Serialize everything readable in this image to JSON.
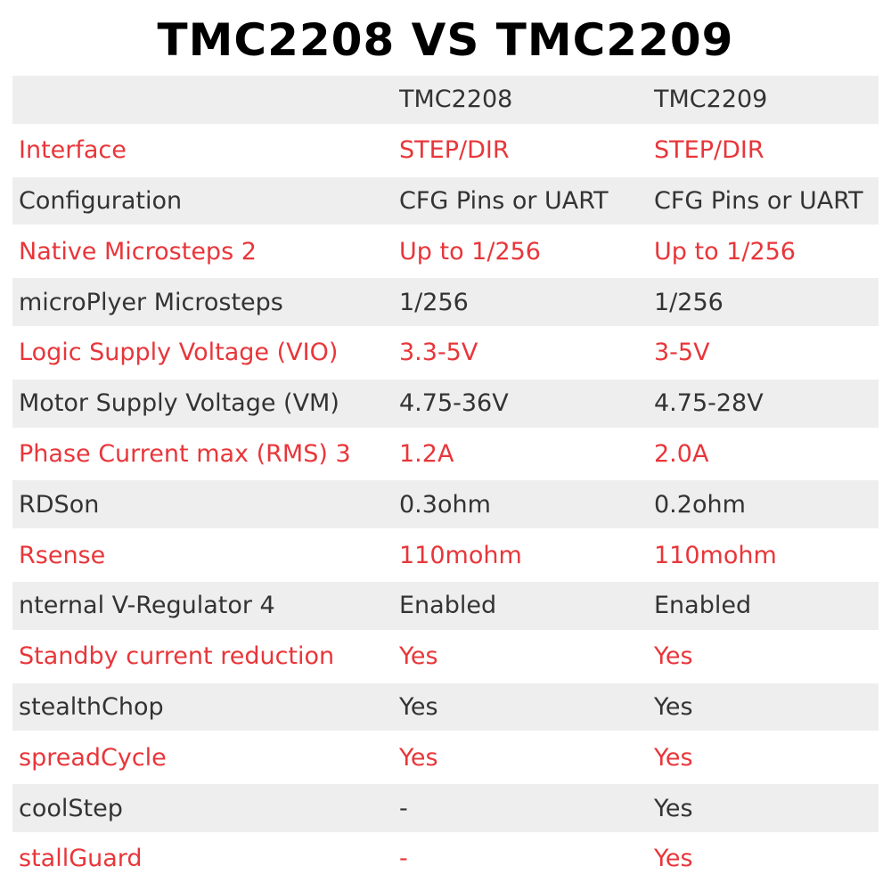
{
  "title": "TMC2208 VS TMC2209",
  "table": {
    "headers": [
      "",
      "TMC2208",
      "TMC2209"
    ],
    "rows": [
      {
        "cells": [
          "Interface",
          "STEP/DIR",
          "STEP/DIR"
        ],
        "highlight": true
      },
      {
        "cells": [
          "Configuration",
          "CFG Pins or UART",
          "CFG Pins or UART"
        ],
        "highlight": false
      },
      {
        "cells": [
          "Native Microsteps 2",
          "Up to 1/256",
          "Up to 1/256"
        ],
        "highlight": true
      },
      {
        "cells": [
          "microPlyer Microsteps",
          "1/256",
          "1/256"
        ],
        "highlight": false
      },
      {
        "cells": [
          "Logic Supply Voltage (VIO)",
          "3.3-5V",
          "3-5V"
        ],
        "highlight": true
      },
      {
        "cells": [
          "Motor Supply Voltage (VM)",
          "4.75-36V",
          "4.75-28V"
        ],
        "highlight": false
      },
      {
        "cells": [
          "Phase Current max (RMS) 3",
          "1.2A",
          "2.0A"
        ],
        "highlight": true
      },
      {
        "cells": [
          "RDSon",
          "0.3ohm",
          "0.2ohm"
        ],
        "highlight": false
      },
      {
        "cells": [
          "Rsense",
          "110mohm",
          "110mohm"
        ],
        "highlight": true
      },
      {
        "cells": [
          "nternal V-Regulator 4",
          "Enabled",
          "Enabled"
        ],
        "highlight": false
      },
      {
        "cells": [
          "Standby current reduction",
          "Yes",
          "Yes"
        ],
        "highlight": true
      },
      {
        "cells": [
          "stealthChop",
          "Yes",
          "Yes"
        ],
        "highlight": false
      },
      {
        "cells": [
          "spreadCycle",
          "Yes",
          "Yes"
        ],
        "highlight": true
      },
      {
        "cells": [
          "coolStep",
          "-",
          "Yes"
        ],
        "highlight": false
      },
      {
        "cells": [
          "stallGuard",
          "-",
          "Yes"
        ],
        "highlight": true
      }
    ]
  },
  "colors": {
    "highlight_text": "#e8363a",
    "normal_text": "#333333",
    "shaded_row": "#eeeeee",
    "title_text": "#000000"
  }
}
